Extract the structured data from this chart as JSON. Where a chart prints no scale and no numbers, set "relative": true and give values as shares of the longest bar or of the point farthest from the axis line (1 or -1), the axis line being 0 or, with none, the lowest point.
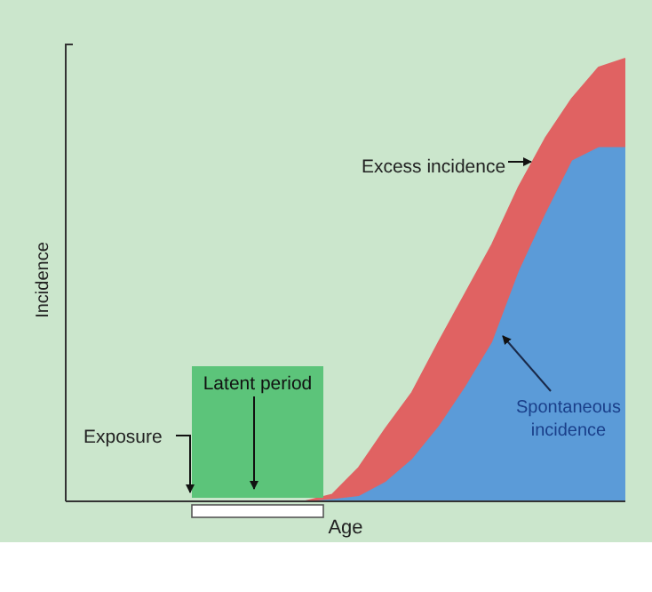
{
  "chart_data": {
    "type": "area",
    "stacked": true,
    "relative": true,
    "xlabel": "Age",
    "ylabel": "Incidence",
    "categories": [
      null,
      null,
      null,
      null,
      null,
      null,
      null,
      null,
      null,
      null,
      null,
      null,
      null,
      null,
      null,
      null,
      null,
      null,
      null,
      null,
      null,
      null
    ],
    "series": [
      {
        "name": "Spontaneous incidence",
        "color": "#5b9bd8",
        "values": [
          0,
          0,
          0,
          0,
          0,
          0,
          0,
          0,
          0,
          0,
          0.005,
          0.012,
          0.044,
          0.096,
          0.17,
          0.26,
          0.36,
          0.52,
          0.65,
          0.77,
          0.8,
          0.8
        ]
      },
      {
        "name": "Excess incidence",
        "color": "#e06262",
        "values": [
          0,
          0,
          0,
          0,
          0,
          0,
          0,
          0,
          0,
          0,
          0.01,
          0.064,
          0.12,
          0.15,
          0.19,
          0.21,
          0.22,
          0.19,
          0.17,
          0.14,
          0.18,
          0.2
        ]
      }
    ],
    "annotations": [
      "Exposure",
      "Latent period"
    ]
  }
}
